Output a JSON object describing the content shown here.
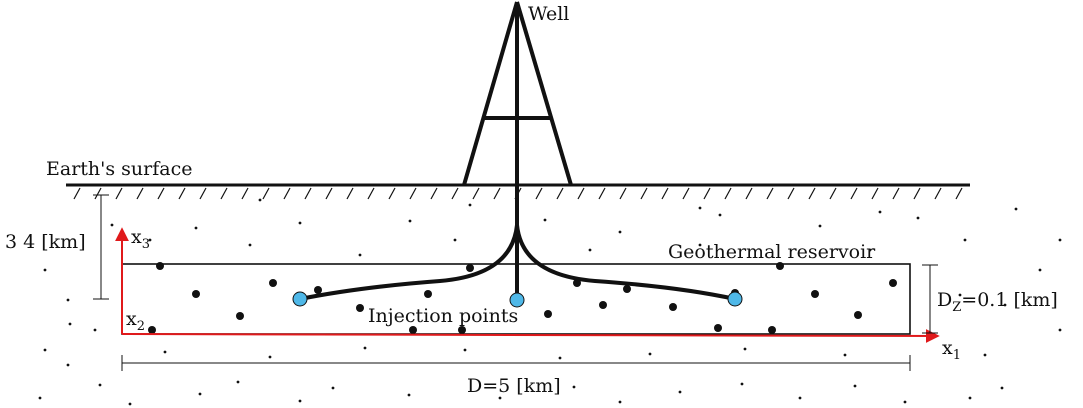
{
  "labels": {
    "well": "Well",
    "surface": "Earth's surface",
    "depth": "3 4 [km]",
    "reservoir": "Geothermal reservoir",
    "injection": "Injection points",
    "length": "D=5 [km]",
    "thickness_main": "D",
    "thickness_sub": "Z",
    "thickness_rest": "=0.1 [km]",
    "axis_x1_main": "x",
    "axis_x1_sub": "1",
    "axis_x2_main": "x",
    "axis_x2_sub": "2",
    "axis_x3_main": "x",
    "axis_x3_sub": "3"
  },
  "colors": {
    "axis": "#e0191b",
    "injection_point": "#4fb8e8",
    "ink": "#111111"
  }
}
